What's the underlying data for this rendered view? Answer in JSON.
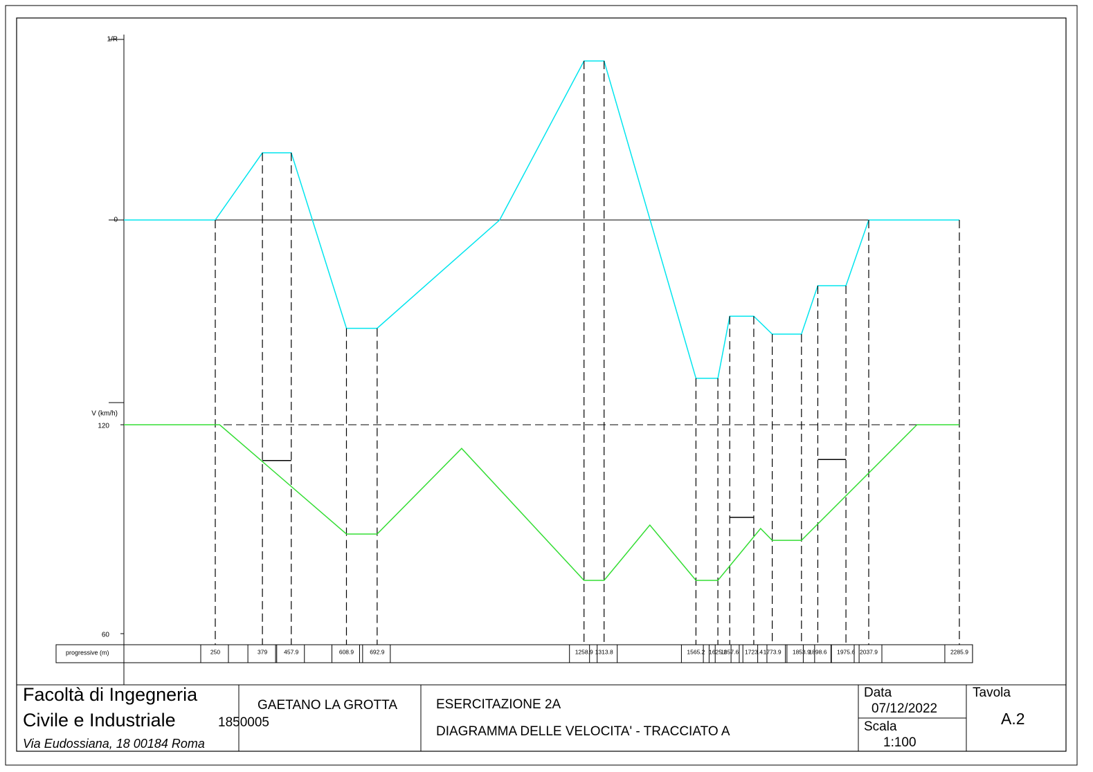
{
  "chart_data": [
    {
      "type": "line",
      "ylim": [
        -1,
        1
      ],
      "yticks": [
        0,
        {
          "value": 1,
          "label": "1/R"
        }
      ],
      "xlim": [
        0,
        2322
      ],
      "series": [
        {
          "color": "#00e5ee",
          "x": [
            0,
            250,
            379,
            457.9,
            608.9,
            692.9,
            1028,
            1258.9,
            1313.8,
            1565.2,
            1625.2,
            1657.6,
            1723.4,
            1773.9,
            1853.9,
            1898.6,
            1975.6,
            2037.9,
            2285.9
          ],
          "values": [
            0,
            0,
            0.372,
            0.372,
            -0.6,
            -0.6,
            0,
            0.881,
            0.881,
            -0.877,
            -0.877,
            -0.533,
            -0.533,
            -0.632,
            -0.632,
            -0.364,
            -0.364,
            0,
            0
          ]
        }
      ]
    },
    {
      "type": "line",
      "ylabel": "V (km/h)",
      "ylim": [
        60,
        120
      ],
      "yticks": [
        60,
        120
      ],
      "xlim": [
        0,
        2322
      ],
      "xlabel": "progressive (m)",
      "xticks": [
        250,
        379,
        457.9,
        608.9,
        692.9,
        1258.9,
        1313.8,
        1565.2,
        1625.2,
        1657.6,
        1723.4,
        1773.9,
        1853.9,
        1898.6,
        1975.6,
        2037.9,
        2285.9
      ],
      "series": [
        {
          "color": "#33dd33",
          "x": [
            0,
            262,
            608.9,
            692.9,
            924,
            1258.9,
            1313.8,
            1439,
            1565.2,
            1625.2,
            1742,
            1773.9,
            1853.9,
            2170,
            2285.9
          ],
          "values": [
            120,
            120,
            88.6,
            88.6,
            113.2,
            75.3,
            75.3,
            91.2,
            75.3,
            75.3,
            90.2,
            86.8,
            86.8,
            120,
            120
          ]
        },
        {
          "color": "#000000",
          "x": [
            379,
            457.9,
            null,
            1657.6,
            1723.4,
            null,
            1898.6,
            1975.6
          ],
          "values": [
            109.7,
            109.7,
            null,
            93.4,
            93.4,
            null,
            110,
            110
          ]
        }
      ]
    }
  ],
  "title_block": {
    "institution": [
      "Facoltà di Ingegneria",
      "Civile e Industriale"
    ],
    "student_id": "1850005",
    "address": "Via Eudossiana, 18 00184 Roma",
    "author": "GAETANO LA GROTTA",
    "exercise": "ESERCITAZIONE 2A",
    "subject": "DIAGRAMMA DELLE VELOCITA' - TRACCIATO A",
    "date_label": "Data",
    "date": "07/12/2022",
    "scale_label": "Scala",
    "scale": "1:100",
    "sheet_label": "Tavola",
    "sheet": "A.2"
  }
}
